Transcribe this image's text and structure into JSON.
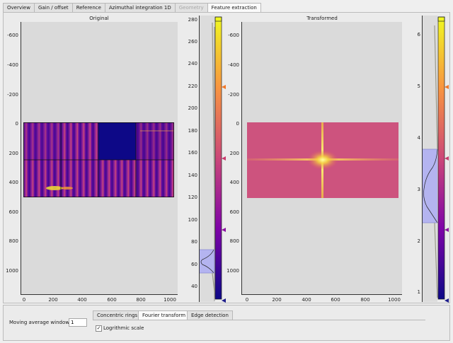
{
  "tabs": [
    {
      "label": "Overview",
      "state": "normal"
    },
    {
      "label": "Gain / offset",
      "state": "normal"
    },
    {
      "label": "Reference",
      "state": "normal"
    },
    {
      "label": "Azimuthal integration 1D",
      "state": "normal"
    },
    {
      "label": "Geometry",
      "state": "disabled"
    },
    {
      "label": "Feature extraction",
      "state": "active"
    }
  ],
  "left_plot": {
    "title": "Original",
    "y_ticks": [
      "-600",
      "-400",
      "-200",
      "0",
      "200",
      "400",
      "600",
      "800",
      "1000"
    ],
    "x_ticks": [
      "0",
      "200",
      "400",
      "600",
      "800",
      "1000"
    ]
  },
  "left_histogram": {
    "ticks": [
      "280",
      "260",
      "240",
      "220",
      "200",
      "180",
      "160",
      "140",
      "120",
      "100",
      "80",
      "60",
      "40"
    ]
  },
  "right_plot": {
    "title": "Transformed",
    "y_ticks": [
      "-600",
      "-400",
      "-200",
      "0",
      "200",
      "400",
      "600",
      "800",
      "1000"
    ],
    "x_ticks": [
      "0",
      "200",
      "400",
      "600",
      "800",
      "1000"
    ]
  },
  "right_histogram": {
    "ticks": [
      "6",
      "5",
      "4",
      "3",
      "2",
      "1"
    ]
  },
  "bottom": {
    "moving_avg_label": "Moving average window:",
    "moving_avg_value": "1",
    "subtabs": [
      {
        "label": "Concentric rings",
        "active": false
      },
      {
        "label": "Fourier transform",
        "active": true
      },
      {
        "label": "Edge detection",
        "active": false
      }
    ],
    "log_scale_label": "Logrithmic scale",
    "log_scale_checked": "✓"
  },
  "colors": {
    "plasma_top": "#f0f921",
    "plasma_mid": "#cc4778",
    "plasma_low": "#7e03a8",
    "plasma_bot": "#0d0887",
    "histo_fill": "#b4b4f0",
    "marker_orange": "#f0782a",
    "marker_pink": "#c83c6e",
    "marker_purple": "#8c14a0",
    "marker_navy": "#1e1e8c"
  }
}
